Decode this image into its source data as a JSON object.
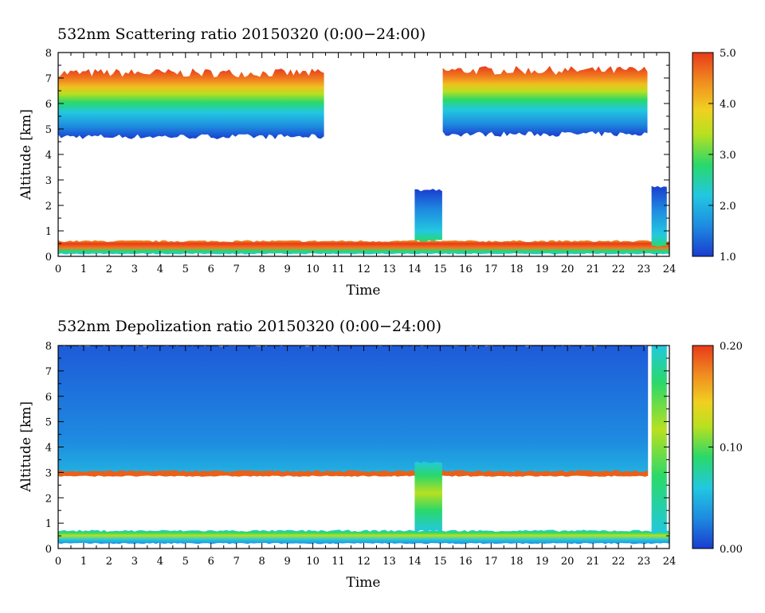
{
  "chart_data": [
    {
      "type": "heatmap",
      "title": "532nm Scattering ratio  20150320 (0:00−24:00)",
      "xlabel": "Time",
      "ylabel": "Altitude [km]",
      "xlim": [
        0,
        24
      ],
      "ylim": [
        0,
        8
      ],
      "xticks": [
        "0",
        "1",
        "2",
        "3",
        "4",
        "5",
        "6",
        "7",
        "8",
        "9",
        "10",
        "11",
        "12",
        "13",
        "14",
        "15",
        "16",
        "17",
        "18",
        "19",
        "20",
        "21",
        "22",
        "23",
        "24"
      ],
      "yticks": [
        "0",
        "1",
        "2",
        "3",
        "4",
        "5",
        "6",
        "7",
        "8"
      ],
      "colorbar": {
        "range": [
          1.0,
          5.0
        ],
        "ticks": [
          "1.0",
          "2.0",
          "3.0",
          "4.0",
          "5.0"
        ],
        "colormap": [
          "#1a3ccf",
          "#1e8be0",
          "#22c8e0",
          "#2ad86a",
          "#b8e020",
          "#f0d020",
          "#f09020",
          "#e83a1a"
        ]
      },
      "features": [
        {
          "name": "upper-cloud-layer",
          "t_start": 0,
          "t_end": 10.5,
          "alt_bottom": 4.7,
          "alt_top": 7.2
        },
        {
          "name": "upper-cloud-layer",
          "t_start": 15.1,
          "t_end": 23.2,
          "alt_bottom": 4.8,
          "alt_top": 7.3
        },
        {
          "name": "boundary-layer",
          "t_start": 0,
          "t_end": 24,
          "alt_bottom": 0.1,
          "alt_top": 0.6
        },
        {
          "name": "low-cloud-column",
          "t_start": 14.0,
          "t_end": 15.1,
          "alt_bottom": 0.6,
          "alt_top": 2.6
        },
        {
          "name": "low-cloud-column",
          "t_start": 23.3,
          "t_end": 24.0,
          "alt_bottom": 0.4,
          "alt_top": 2.7
        }
      ]
    },
    {
      "type": "heatmap",
      "title": "532nm Depolization ratio  20150320 (0:00−24:00)",
      "xlabel": "Time",
      "ylabel": "Altitude [km]",
      "xlim": [
        0,
        24
      ],
      "ylim": [
        0,
        8
      ],
      "xticks": [
        "0",
        "1",
        "2",
        "3",
        "4",
        "5",
        "6",
        "7",
        "8",
        "9",
        "10",
        "11",
        "12",
        "13",
        "14",
        "15",
        "16",
        "17",
        "18",
        "19",
        "20",
        "21",
        "22",
        "23",
        "24"
      ],
      "yticks": [
        "0",
        "1",
        "2",
        "3",
        "4",
        "5",
        "6",
        "7",
        "8"
      ],
      "colorbar": {
        "range": [
          0.0,
          0.2
        ],
        "ticks": [
          "0.00",
          "0.10",
          "0.20"
        ],
        "colormap": [
          "#1a3ccf",
          "#1e8be0",
          "#22c8e0",
          "#2ad86a",
          "#b8e020",
          "#f0d020",
          "#f09020",
          "#e83a1a"
        ]
      },
      "features": [
        {
          "name": "upper-aerosol-layer",
          "t_start": 0,
          "t_end": 23.2,
          "alt_bottom": 3.0,
          "alt_top": 8.0
        },
        {
          "name": "layer-edge",
          "t_start": 0,
          "t_end": 23.2,
          "alt_bottom": 2.85,
          "alt_top": 3.05
        },
        {
          "name": "boundary-layer",
          "t_start": 0,
          "t_end": 24,
          "alt_bottom": 0.2,
          "alt_top": 0.7
        },
        {
          "name": "column",
          "t_start": 14.0,
          "t_end": 15.1,
          "alt_bottom": 0.7,
          "alt_top": 3.4
        },
        {
          "name": "column",
          "t_start": 23.3,
          "t_end": 24.0,
          "alt_bottom": 0.6,
          "alt_top": 8.0
        }
      ]
    }
  ]
}
